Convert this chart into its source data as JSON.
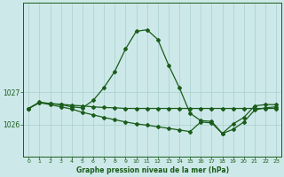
{
  "title": "Graphe pression niveau de la mer (hPa)",
  "background_color": "#cce8e8",
  "line_color": "#1a5c1a",
  "grid_color": "#aacfcf",
  "xlim": [
    -0.5,
    23.5
  ],
  "ylim": [
    1025.0,
    1029.8
  ],
  "yticks": [
    1026,
    1027
  ],
  "xticks": [
    0,
    1,
    2,
    3,
    4,
    5,
    6,
    7,
    8,
    9,
    10,
    11,
    12,
    13,
    14,
    15,
    16,
    17,
    18,
    19,
    20,
    21,
    22,
    23
  ],
  "line1": {
    "x": [
      0,
      1,
      2,
      3,
      4,
      5,
      6,
      7,
      8,
      9,
      10,
      11,
      12,
      13,
      14,
      15,
      16,
      17,
      18,
      19,
      20,
      21,
      22,
      23
    ],
    "y": [
      1026.5,
      1026.7,
      1026.65,
      1026.62,
      1026.55,
      1026.52,
      1026.75,
      1027.15,
      1027.65,
      1028.35,
      1028.9,
      1028.95,
      1028.65,
      1027.85,
      1027.15,
      1026.35,
      1026.12,
      1026.1,
      1025.72,
      1026.02,
      1026.22,
      1026.58,
      1026.62,
      1026.62
    ]
  },
  "line2": {
    "x": [
      0,
      1,
      2,
      3,
      4,
      5,
      6,
      7,
      8,
      9,
      10,
      11,
      12,
      13,
      14,
      15,
      16,
      17,
      18,
      19,
      20,
      21,
      22,
      23
    ],
    "y": [
      1026.5,
      1026.68,
      1026.65,
      1026.63,
      1026.6,
      1026.58,
      1026.55,
      1026.53,
      1026.52,
      1026.5,
      1026.5,
      1026.5,
      1026.5,
      1026.5,
      1026.5,
      1026.5,
      1026.5,
      1026.5,
      1026.5,
      1026.5,
      1026.5,
      1026.5,
      1026.5,
      1026.5
    ]
  },
  "line3": {
    "x": [
      0,
      1,
      2,
      3,
      4,
      5,
      6,
      7,
      8,
      9,
      10,
      11,
      12,
      13,
      14,
      15,
      16,
      17,
      18,
      19,
      20,
      21,
      22,
      23
    ],
    "y": [
      1026.5,
      1026.68,
      1026.62,
      1026.55,
      1026.48,
      1026.38,
      1026.3,
      1026.22,
      1026.15,
      1026.08,
      1026.02,
      1025.98,
      1025.93,
      1025.88,
      1025.83,
      1025.78,
      1026.08,
      1026.05,
      1025.72,
      1025.85,
      1026.08,
      1026.45,
      1026.52,
      1026.55
    ]
  }
}
